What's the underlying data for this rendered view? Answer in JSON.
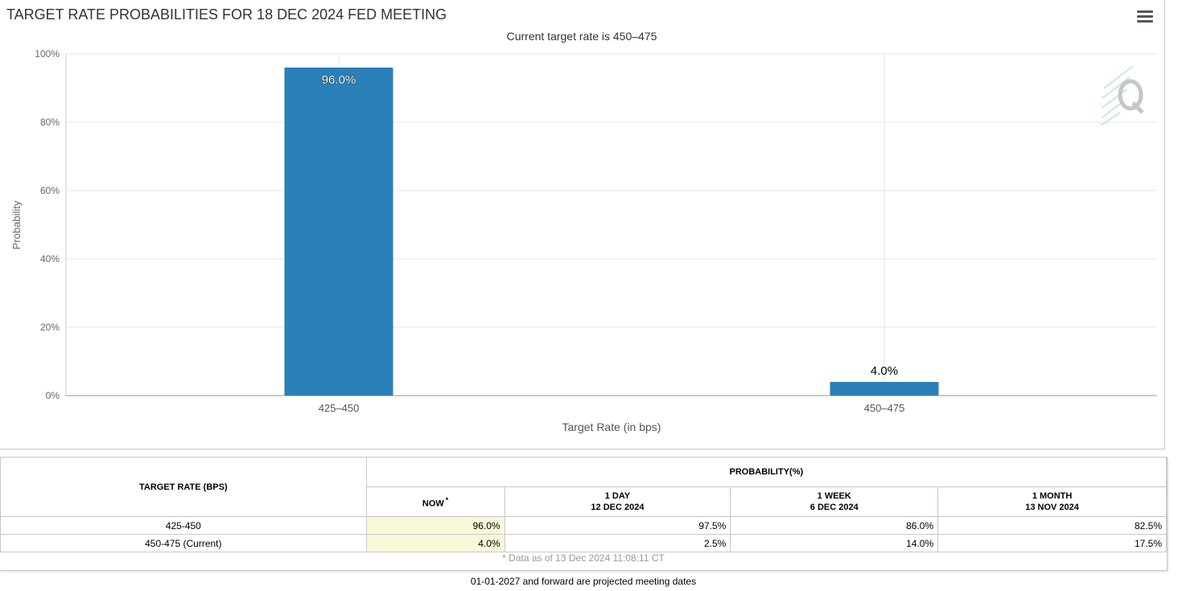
{
  "chart_data": {
    "type": "bar",
    "title": "TARGET RATE PROBABILITIES FOR 18 DEC 2024 FED MEETING",
    "subtitle": "Current target rate is 450–475",
    "xlabel": "Target Rate (in bps)",
    "ylabel": "Probability",
    "categories": [
      "425–450",
      "450–475"
    ],
    "values": [
      96.0,
      4.0
    ],
    "data_labels": [
      "96.0%",
      "4.0%"
    ],
    "ylim": [
      0,
      100
    ],
    "yticks": [
      {
        "value": 0,
        "label": "0%"
      },
      {
        "value": 20,
        "label": "20%"
      },
      {
        "value": 40,
        "label": "40%"
      },
      {
        "value": 60,
        "label": "60%"
      },
      {
        "value": 80,
        "label": "80%"
      },
      {
        "value": 100,
        "label": "100%"
      }
    ],
    "grid": true,
    "bar_color": "#2a7fb8"
  },
  "menu": {
    "icon": "hamburger-menu-icon"
  },
  "watermark": {
    "icon": "quikstrike-q-logo"
  },
  "table": {
    "target_rate_header": "TARGET RATE (BPS)",
    "probability_header": "PROBABILITY(%)",
    "columns": [
      {
        "line1": "NOW",
        "marker": "*",
        "line2": ""
      },
      {
        "line1": "1 DAY",
        "line2": "12 DEC 2024"
      },
      {
        "line1": "1 WEEK",
        "line2": "6 DEC 2024"
      },
      {
        "line1": "1 MONTH",
        "line2": "13 NOV 2024"
      }
    ],
    "rows": [
      {
        "label": "425-450",
        "values": [
          "96.0%",
          "97.5%",
          "86.0%",
          "82.5%"
        ]
      },
      {
        "label": "450-475 (Current)",
        "values": [
          "4.0%",
          "2.5%",
          "14.0%",
          "17.5%"
        ]
      }
    ],
    "as_of": "* Data as of 13 Dec 2024 11:08:11 CT"
  },
  "footnote": "01-01-2027 and forward are projected meeting dates"
}
